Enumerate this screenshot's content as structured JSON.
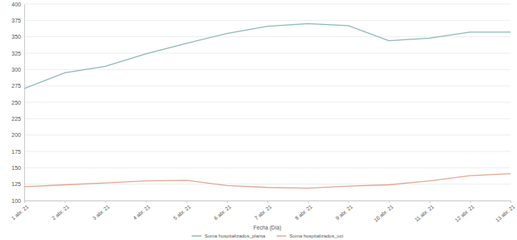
{
  "chart_data": {
    "type": "line",
    "x_label": "Fecha (Día)",
    "categories": [
      "1 abr. 21",
      "2 abr. 21",
      "3 abr. 21",
      "4 abr. 21",
      "5 abr. 21",
      "6 abr. 21",
      "7 abr. 21",
      "8 abr. 21",
      "9 abr. 21",
      "10 abr. 21",
      "11 abr. 21",
      "12 abr. 21",
      "13 abr. 21"
    ],
    "series": [
      {
        "name": "Suma hospitalizados_planta",
        "color": "#8db9b6",
        "values": [
          271,
          295,
          305,
          324,
          340,
          355,
          366,
          370,
          367,
          344,
          348,
          357,
          357
        ]
      },
      {
        "name": "Suma hospitalizados_uci",
        "color": "#e3a793",
        "values": [
          121,
          124,
          127,
          130,
          131,
          123,
          120,
          119,
          122,
          124,
          130,
          138,
          141
        ]
      }
    ],
    "ylim": [
      100,
      400
    ],
    "yticks": [
      100,
      125,
      150,
      175,
      200,
      225,
      250,
      275,
      300,
      325,
      350,
      375,
      400
    ],
    "grid": true,
    "legend": "bottom",
    "marker": "none"
  }
}
